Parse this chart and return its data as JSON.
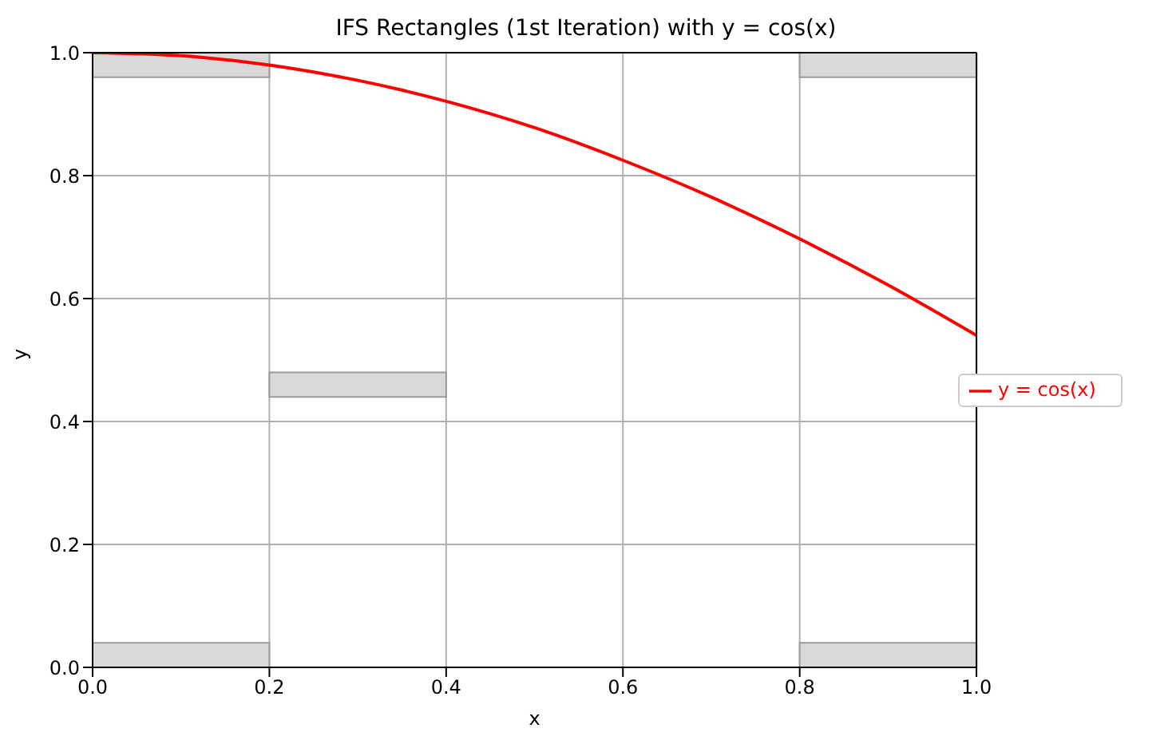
{
  "chart_data": {
    "type": "line",
    "title": "IFS Rectangles (1st Iteration) with y = cos(x)",
    "xlabel": "x",
    "ylabel": "y",
    "xlim": [
      0,
      1
    ],
    "ylim": [
      0,
      1
    ],
    "xticks": [
      {
        "value": 0,
        "label": "0.0"
      },
      {
        "value": 0.2,
        "label": "0.2"
      },
      {
        "value": 0.4,
        "label": "0.4"
      },
      {
        "value": 0.6,
        "label": "0.6"
      },
      {
        "value": 0.8,
        "label": "0.8"
      },
      {
        "value": 1,
        "label": "1.0"
      }
    ],
    "yticks": [
      {
        "value": 0,
        "label": "0.0"
      },
      {
        "value": 0.2,
        "label": "0.2"
      },
      {
        "value": 0.4,
        "label": "0.4"
      },
      {
        "value": 0.6,
        "label": "0.6"
      },
      {
        "value": 0.8,
        "label": "0.8"
      },
      {
        "value": 1,
        "label": "1.0"
      }
    ],
    "grid": true,
    "legend": "right",
    "series": [
      {
        "type": "bar",
        "x": [
          0.1,
          0.3,
          0.9
        ],
        "base": [
          0,
          0.44,
          0
        ],
        "values": [
          0.04,
          0.04,
          0.04
        ],
        "color": "#d9d9d9"
      },
      {
        "type": "bar",
        "x": [
          0.1,
          0.9
        ],
        "base": [
          0.96,
          0.96
        ],
        "values": [
          0.04,
          0.04
        ],
        "color": "#d9d9d9"
      },
      {
        "name": "y = cos(x)",
        "color": "#ff0000",
        "x": [
          0,
          0.1,
          0.2,
          0.3,
          0.4,
          0.5,
          0.6,
          0.7,
          0.8,
          0.9,
          1
        ],
        "values": [
          1,
          0.995,
          0.98,
          0.955,
          0.921,
          0.878,
          0.825,
          0.765,
          0.697,
          0.622,
          0.54
        ]
      }
    ]
  }
}
